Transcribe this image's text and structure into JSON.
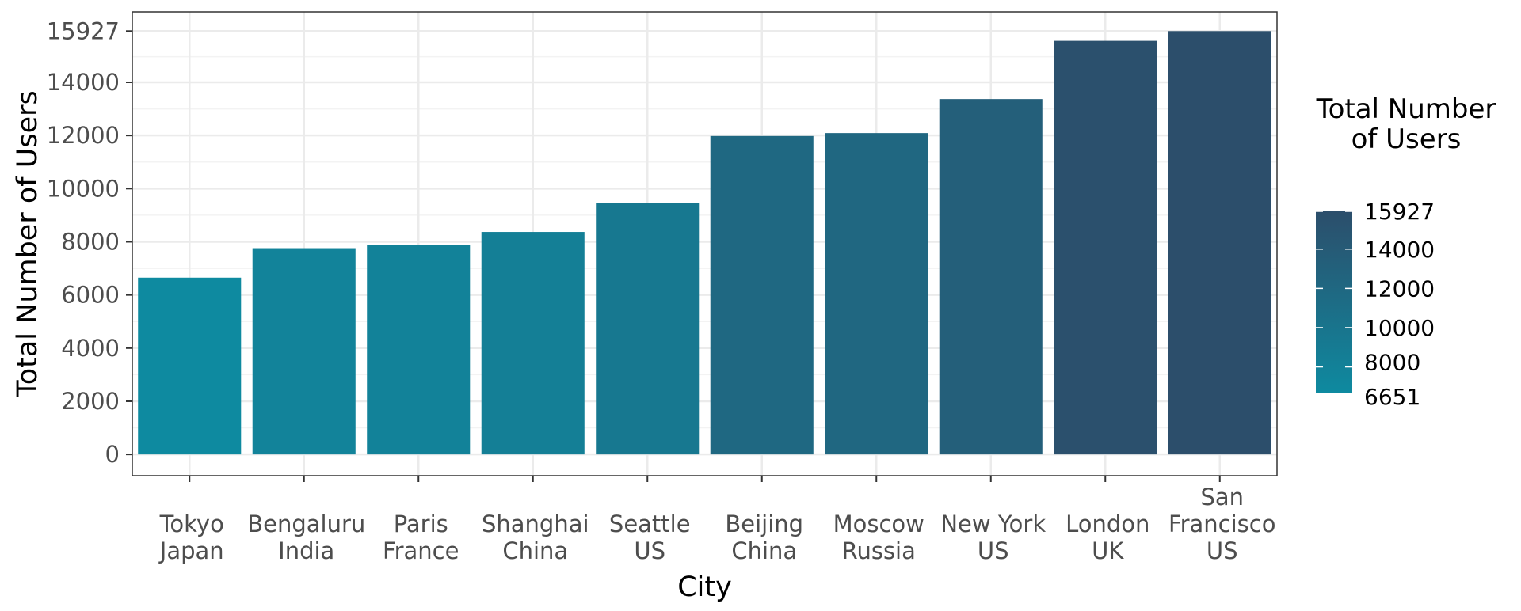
{
  "chart_data": {
    "type": "bar",
    "title": "",
    "xlabel": "City",
    "ylabel": "Total Number of Users",
    "categories": [
      [
        "Tokyo",
        "Japan"
      ],
      [
        "Bengaluru",
        "India"
      ],
      [
        "Paris",
        "France"
      ],
      [
        "Shanghai",
        "China"
      ],
      [
        "Seattle",
        "US"
      ],
      [
        "Beijing",
        "China"
      ],
      [
        "Moscow",
        "Russia"
      ],
      [
        "New York",
        "US"
      ],
      [
        "London",
        "UK"
      ],
      [
        "San",
        "Francisco",
        "US"
      ]
    ],
    "values": [
      6651,
      7760,
      7880,
      8370,
      9460,
      11980,
      12090,
      13370,
      15560,
      15927
    ],
    "ylim": [
      -800,
      16650
    ],
    "y_ticks": [
      0,
      2000,
      4000,
      6000,
      8000,
      10000,
      12000,
      14000,
      15927
    ],
    "y_tick_labels": [
      "0",
      "2000",
      "4000",
      "6000",
      "8000",
      "10000",
      "12000",
      "14000",
      "15927"
    ],
    "grid": true,
    "legend": {
      "title_lines": [
        "Total Number",
        "of Users"
      ],
      "placement": "right",
      "min": 6651,
      "max": 15927,
      "ticks": [
        6651,
        8000,
        10000,
        12000,
        14000,
        15927
      ],
      "tick_labels": [
        "6651",
        "8000",
        "10000",
        "12000",
        "14000",
        "15927"
      ],
      "color_low": "#0e8aa0",
      "color_high": "#2c4e6b"
    },
    "colors": {
      "panel_border": "#333333",
      "grid_major": "#ebebeb",
      "grid_minor": "#f3f3f3",
      "tick_text": "#4d4d4d",
      "background": "#ffffff"
    }
  }
}
